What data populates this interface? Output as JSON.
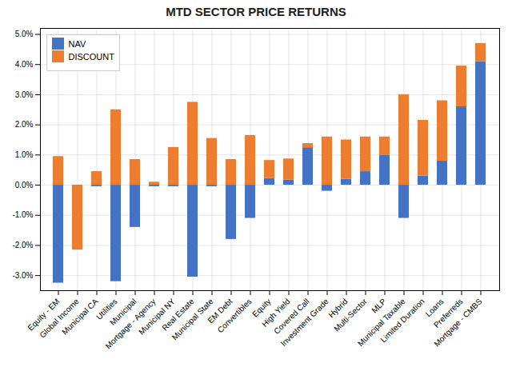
{
  "chart_data": {
    "type": "bar",
    "title": "MTD SECTOR PRICE RETURNS",
    "categories": [
      "Equity - EM",
      "Global Income",
      "Municipal CA",
      "Utilities",
      "Municipal",
      "Mortgage - Agency",
      "Municipal NY",
      "Real Estate",
      "Municipal State",
      "EM Debt",
      "Convertibles",
      "Equity",
      "High Yield",
      "Covered Call",
      "Investment Grade",
      "Hybrid",
      "Multi-Sector",
      "MLP",
      "Municipal Taxable",
      "Limited Duration",
      "Loans",
      "Preferreds",
      "Mortgage - CMBS"
    ],
    "series": [
      {
        "name": "NAV",
        "color": "#4472c4",
        "values": [
          -3.25,
          -0.05,
          -0.05,
          -3.2,
          -1.4,
          -0.05,
          -0.05,
          -3.05,
          -0.05,
          -1.8,
          -1.1,
          0.22,
          0.17,
          1.38,
          -0.2,
          0.2,
          0.45,
          1.0,
          -1.1,
          0.3,
          0.8,
          2.6,
          4.1
        ]
      },
      {
        "name": "DISCOUNT",
        "color": "#ed7d31",
        "values": [
          0.95,
          -2.15,
          0.45,
          2.5,
          0.85,
          0.1,
          1.25,
          2.75,
          1.55,
          0.85,
          1.65,
          0.6,
          0.7,
          -0.15,
          1.6,
          1.3,
          1.15,
          0.6,
          3.0,
          1.85,
          2.0,
          1.35,
          0.6
        ]
      }
    ],
    "stacked": true,
    "ylim": [
      -3.5,
      5.2
    ],
    "yticks": [
      {
        "value": -3.0,
        "label": "-3.0%"
      },
      {
        "value": -2.0,
        "label": "-2.0%"
      },
      {
        "value": -1.0,
        "label": "-1.0%"
      },
      {
        "value": 0.0,
        "label": "0.0%"
      },
      {
        "value": 1.0,
        "label": "1.0%"
      },
      {
        "value": 2.0,
        "label": "2.0%"
      },
      {
        "value": 3.0,
        "label": "3.0%"
      },
      {
        "value": 4.0,
        "label": "4.0%"
      },
      {
        "value": 5.0,
        "label": "5.0%"
      }
    ],
    "grid": true,
    "legend": "upper left"
  }
}
